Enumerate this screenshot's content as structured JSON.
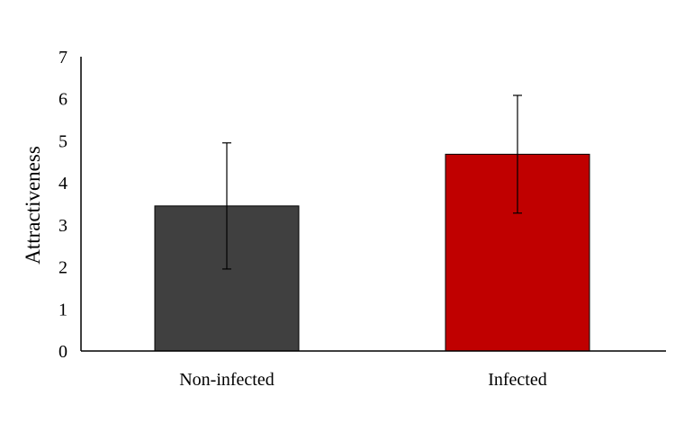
{
  "chart_data": {
    "type": "bar",
    "title": "",
    "xlabel": "",
    "ylabel": "Attractiveness",
    "ylim": [
      0,
      7
    ],
    "yticks": [
      0,
      1,
      2,
      3,
      4,
      5,
      6,
      7
    ],
    "grid": false,
    "categories": [
      "Non-infected",
      "Infected"
    ],
    "values": [
      3.45,
      4.68
    ],
    "error": [
      1.5,
      1.4
    ],
    "colors": [
      "#404040",
      "#c00000"
    ]
  }
}
